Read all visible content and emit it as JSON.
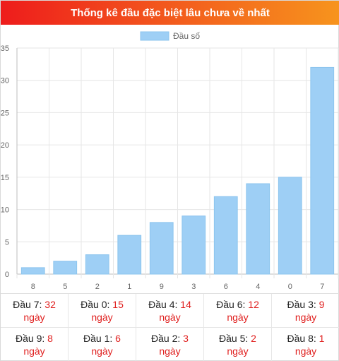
{
  "header": {
    "title": "Thống kê đầu đặc biệt lâu chưa về nhất"
  },
  "colors": {
    "bar": "#9ecff5",
    "bar_border": "#8cc4ee",
    "accent_red": "#e0201f"
  },
  "chart_data": {
    "type": "bar",
    "categories": [
      "8",
      "5",
      "2",
      "1",
      "9",
      "3",
      "6",
      "4",
      "0",
      "7"
    ],
    "series": [
      {
        "name": "Đầu số",
        "values": [
          1,
          2,
          3,
          6,
          8,
          9,
          12,
          14,
          15,
          32
        ]
      }
    ],
    "y_ticks": [
      "0",
      "5",
      "10",
      "15",
      "20",
      "25",
      "30",
      "35"
    ],
    "ylim": [
      0,
      35
    ],
    "grid": true,
    "legend_position": "top-center"
  },
  "stats": [
    {
      "label": "Đầu 7:",
      "value": "32",
      "unit": "ngày"
    },
    {
      "label": "Đầu 0:",
      "value": "15",
      "unit": "ngày"
    },
    {
      "label": "Đầu 4:",
      "value": "14",
      "unit": "ngày"
    },
    {
      "label": "Đầu 6:",
      "value": "12",
      "unit": "ngày"
    },
    {
      "label": "Đầu 3:",
      "value": "9",
      "unit": "ngày"
    },
    {
      "label": "Đầu 9:",
      "value": "8",
      "unit": "ngày"
    },
    {
      "label": "Đầu 1:",
      "value": "6",
      "unit": "ngày"
    },
    {
      "label": "Đầu 2:",
      "value": "3",
      "unit": "ngày"
    },
    {
      "label": "Đầu 5:",
      "value": "2",
      "unit": "ngày"
    },
    {
      "label": "Đầu 8:",
      "value": "1",
      "unit": "ngày"
    }
  ]
}
